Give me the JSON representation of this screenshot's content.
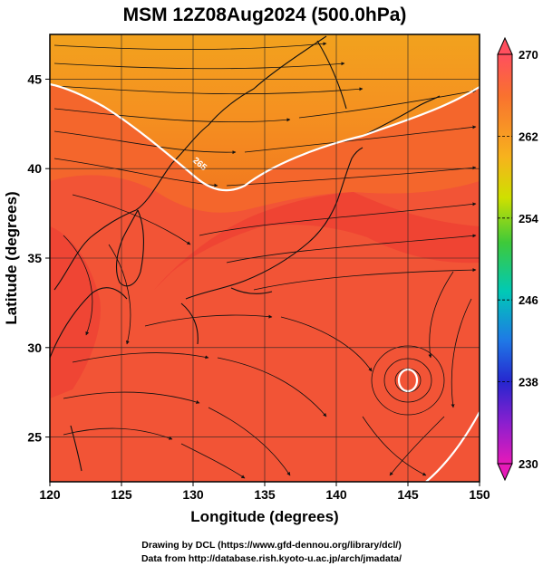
{
  "title": "MSM 12Z08Aug2024 (500.0hPa)",
  "map": {
    "xlabel": "Longitude (degrees)",
    "ylabel": "Latitude (degrees)",
    "xlim": [
      120,
      150
    ],
    "ylim": [
      22.5,
      47.5
    ],
    "xticks": [
      "120",
      "125",
      "130",
      "135",
      "140",
      "145",
      "150"
    ],
    "xtick_values": [
      120,
      125,
      130,
      135,
      140,
      145,
      150
    ],
    "yticks": [
      "25",
      "30",
      "35",
      "40",
      "45"
    ],
    "ytick_values": [
      25,
      30,
      35,
      40,
      45
    ],
    "grid": true,
    "grid_step_deg": 5,
    "contour_label": "265",
    "colors": {
      "background_warm": "#f25436",
      "north_orange": "#f27a1f",
      "north_gold": "#f2a21e",
      "band_red": "#ee3f33",
      "contour": "#ffffff"
    }
  },
  "colorbar": {
    "labels": [
      "270",
      "262",
      "254",
      "246",
      "238",
      "230"
    ],
    "min": 230,
    "max": 270,
    "stops": [
      "#ff4f5e",
      "#f9712f",
      "#f7b21d",
      "#cfe000",
      "#3ec93a",
      "#00c9b6",
      "#1f78e6",
      "#2626cf",
      "#8a1fcf",
      "#e61ab8"
    ]
  },
  "credits": {
    "line1": "Drawing by DCL (https://www.gfd-dennou.org/library/dcl/)",
    "line2": "Data from http://database.rish.kyoto-u.ac.jp/arch/jmadata/"
  }
}
